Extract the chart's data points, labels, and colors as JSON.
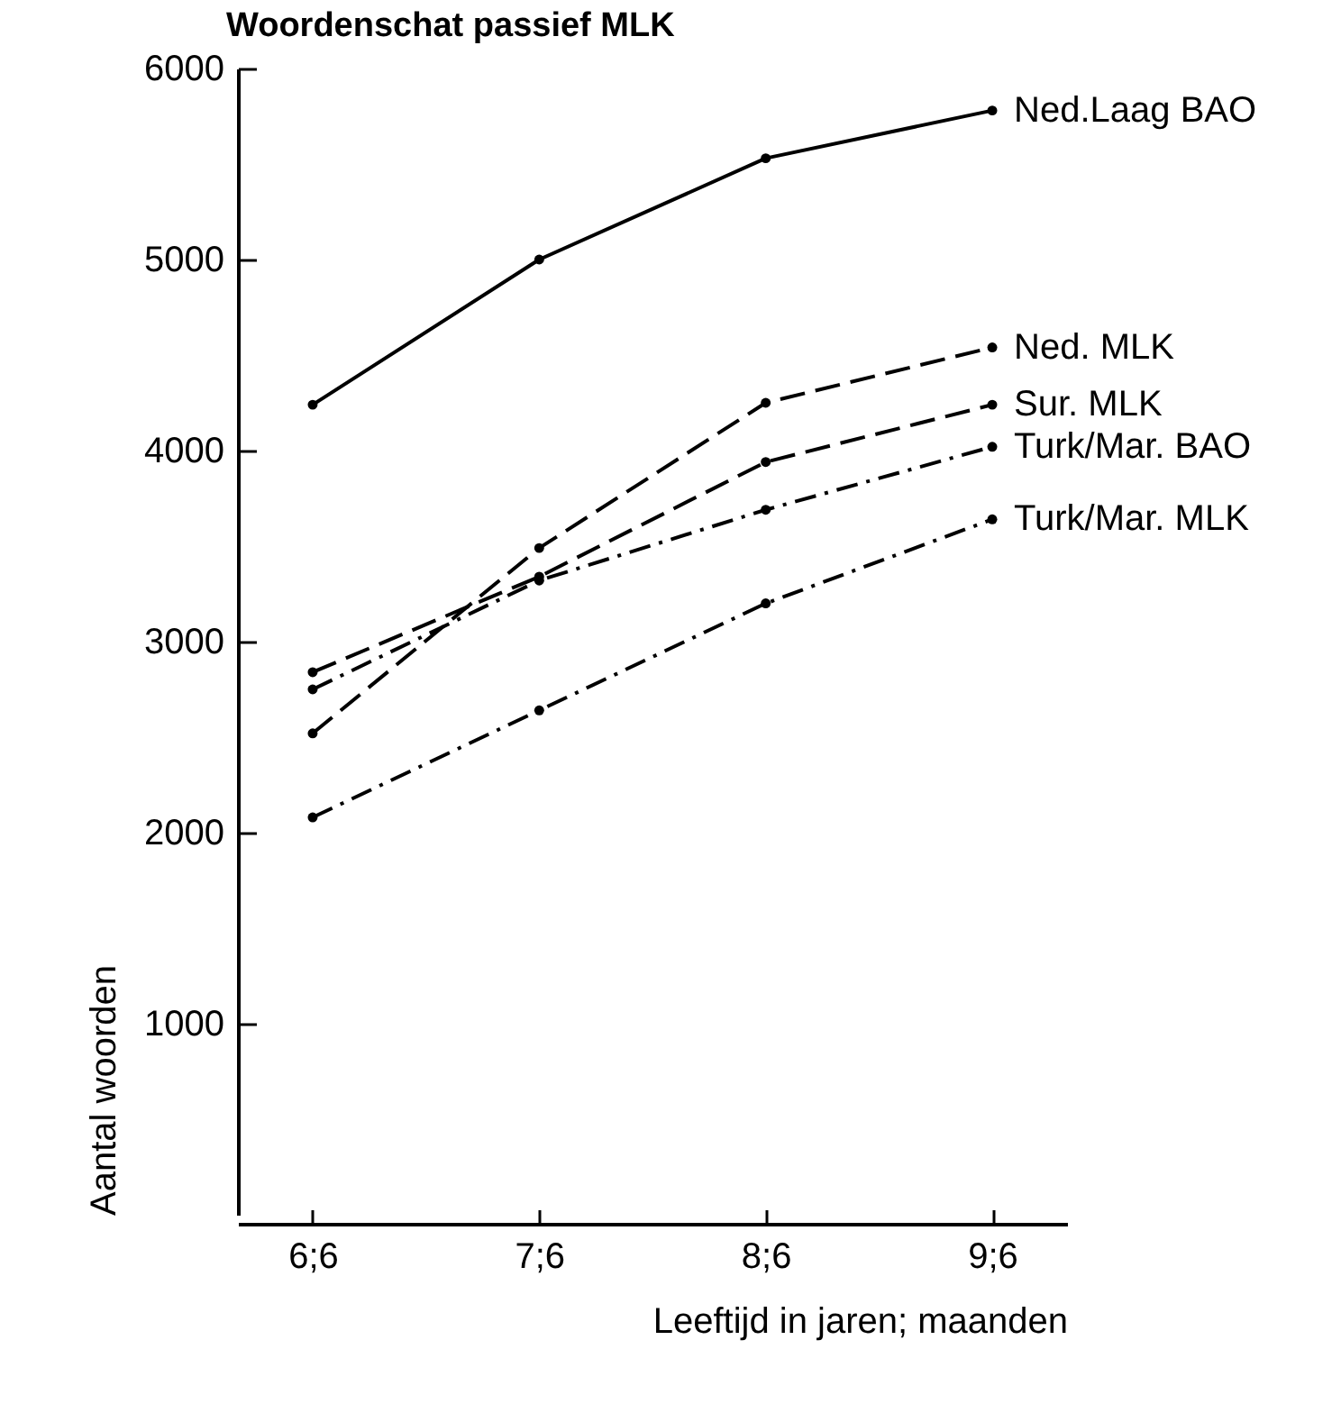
{
  "chart_data": {
    "type": "line",
    "title": "Woordenschat passief MLK",
    "xlabel": "Leeftijd in jaren; maanden",
    "ylabel": "Aantal woorden",
    "categories": [
      "6;6",
      "7;6",
      "8;6",
      "9;6"
    ],
    "ylim": [
      0,
      6000
    ],
    "yticks": [
      1000,
      2000,
      3000,
      4000,
      5000,
      6000
    ],
    "grid": false,
    "legend": false,
    "marker": "circle",
    "series": [
      {
        "name": "Ned.Laag BAO",
        "color": "#000000",
        "line_style": "solid",
        "values": [
          4240,
          5000,
          5530,
          5780
        ]
      },
      {
        "name": "Ned. MLK",
        "color": "#000000",
        "line_style": "dashed",
        "values": [
          2520,
          3490,
          4250,
          4540
        ]
      },
      {
        "name": "Sur. MLK",
        "color": "#000000",
        "line_style": "dashed",
        "values": [
          2840,
          3340,
          3940,
          4240
        ]
      },
      {
        "name": "Turk/Mar. BAO",
        "color": "#000000",
        "line_style": "dashdot",
        "values": [
          2750,
          3320,
          3690,
          4020
        ]
      },
      {
        "name": "Turk/Mar. MLK",
        "color": "#000000",
        "line_style": "dashdot",
        "values": [
          2080,
          2640,
          3200,
          3640
        ]
      }
    ]
  }
}
